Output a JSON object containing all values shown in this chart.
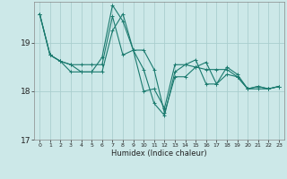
{
  "title": "",
  "xlabel": "Humidex (Indice chaleur)",
  "background_color": "#cce8e8",
  "grid_color": "#aacece",
  "line_color": "#1a7a6e",
  "ylim": [
    17.0,
    19.85
  ],
  "xlim": [
    -0.5,
    23.5
  ],
  "yticks": [
    17,
    18,
    19
  ],
  "xticks": [
    0,
    1,
    2,
    3,
    4,
    5,
    6,
    7,
    8,
    9,
    10,
    11,
    12,
    13,
    14,
    15,
    16,
    17,
    18,
    19,
    20,
    21,
    22,
    23
  ],
  "series": [
    [
      19.6,
      18.75,
      18.62,
      18.55,
      18.55,
      18.55,
      18.55,
      19.55,
      18.75,
      18.85,
      18.85,
      18.45,
      17.55,
      18.3,
      18.3,
      18.5,
      18.45,
      18.45,
      18.45,
      18.3,
      18.05,
      18.05,
      18.05,
      18.1
    ],
    [
      19.6,
      18.75,
      18.62,
      18.55,
      18.4,
      18.4,
      18.4,
      19.25,
      19.6,
      18.85,
      18.0,
      18.05,
      17.65,
      18.55,
      18.55,
      18.65,
      18.15,
      18.15,
      18.35,
      18.3,
      18.05,
      18.1,
      18.05,
      18.1
    ],
    [
      19.6,
      18.75,
      18.62,
      18.4,
      18.4,
      18.4,
      18.7,
      19.78,
      19.45,
      18.85,
      18.45,
      17.75,
      17.5,
      18.4,
      18.55,
      18.5,
      18.6,
      18.15,
      18.5,
      18.35,
      18.05,
      18.1,
      18.05,
      18.1
    ]
  ]
}
